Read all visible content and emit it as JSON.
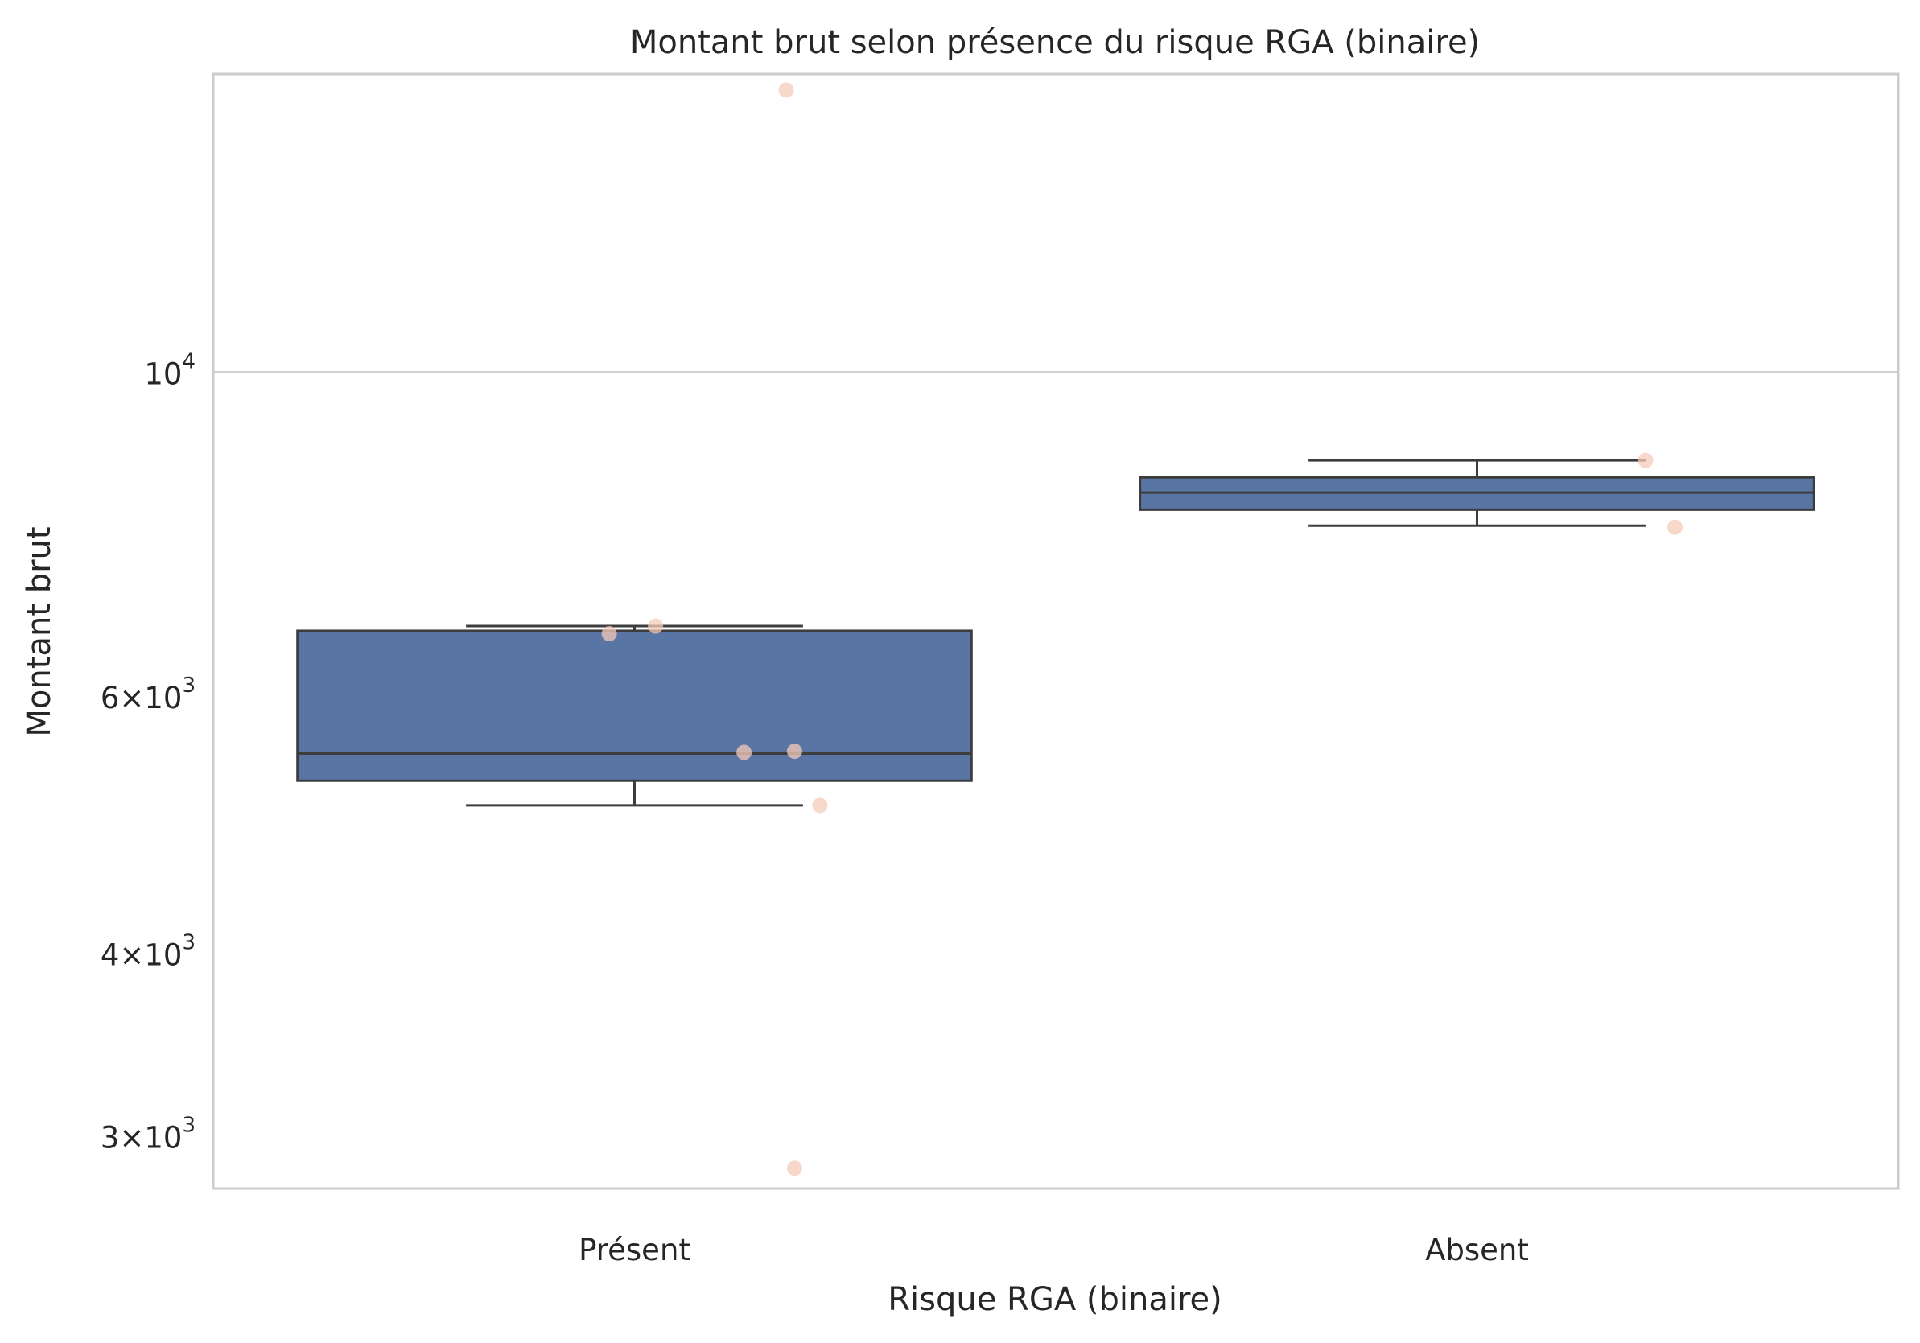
{
  "chart_data": {
    "type": "box",
    "title": "Montant brut selon présence du risque RGA (binaire)",
    "xlabel": "Risque RGA (binaire)",
    "ylabel": "Montant brut",
    "y_scale": "log",
    "ylim": [
      2760,
      16000
    ],
    "grid": "y-major",
    "categories": [
      "Présent",
      "Absent"
    ],
    "y_ticks": [
      {
        "value": 3000,
        "mantissa": "3",
        "base": "10",
        "exponent": "3"
      },
      {
        "value": 4000,
        "mantissa": "4",
        "base": "10",
        "exponent": "3"
      },
      {
        "value": 6000,
        "mantissa": "6",
        "base": "10",
        "exponent": "3"
      },
      {
        "value": 10000,
        "mantissa": "",
        "base": "10",
        "exponent": "4"
      }
    ],
    "boxes": [
      {
        "category": "Présent",
        "whisker_low": 5050,
        "q1": 5250,
        "median": 5480,
        "q3": 6650,
        "whisker_high": 6700
      },
      {
        "category": "Absent",
        "whisker_low": 7850,
        "q1": 8050,
        "median": 8270,
        "q3": 8470,
        "whisker_high": 8700
      }
    ],
    "points": [
      {
        "category": "Présent",
        "offset": 0.18,
        "value": 15600
      },
      {
        "category": "Présent",
        "offset": -0.03,
        "value": 6620
      },
      {
        "category": "Présent",
        "offset": 0.025,
        "value": 6700
      },
      {
        "category": "Présent",
        "offset": 0.13,
        "value": 5490
      },
      {
        "category": "Présent",
        "offset": 0.19,
        "value": 5500
      },
      {
        "category": "Présent",
        "offset": 0.22,
        "value": 5050
      },
      {
        "category": "Présent",
        "offset": 0.19,
        "value": 2850
      },
      {
        "category": "Absent",
        "offset": 0.2,
        "value": 8700
      },
      {
        "category": "Absent",
        "offset": 0.235,
        "value": 7830
      }
    ],
    "colors": {
      "box": "#5975a4",
      "box_edge": "#3d3d3d",
      "point": "#f5cbb8",
      "grid": "#cccccc",
      "frame": "#cccccc"
    }
  }
}
